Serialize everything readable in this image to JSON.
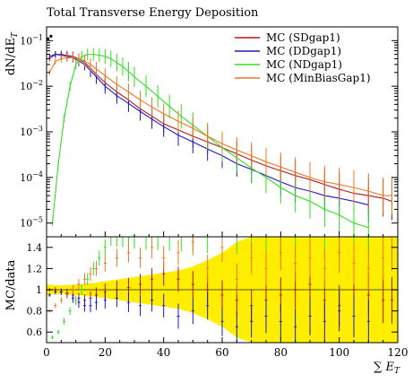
{
  "chart_data": {
    "type": "line",
    "title": "Total Transverse Energy Deposition",
    "xlabel": "∑ E_T",
    "ylabel_top": "dN/dE_T",
    "ylabel_bottom": "MC/data",
    "xlim": [
      0,
      120
    ],
    "ylim_top": [
      5e-06,
      0.2
    ],
    "yscale_top": "log",
    "ylim_bottom": [
      0.5,
      1.5
    ],
    "legend_position": "top-right",
    "x_ticks": [
      "0",
      "20",
      "40",
      "60",
      "80",
      "100",
      "120"
    ],
    "y_ticks_top": [
      {
        "label": "10",
        "exp": "−1",
        "value": 0.1
      },
      {
        "label": "10",
        "exp": "−2",
        "value": 0.01
      },
      {
        "label": "10",
        "exp": "−3",
        "value": 0.001
      },
      {
        "label": "10",
        "exp": "−4",
        "value": 0.0001
      },
      {
        "label": "10",
        "exp": "−5",
        "value": 1e-05
      }
    ],
    "y_ticks_bottom": [
      "0.6",
      "0.8",
      "1",
      "1.2",
      "1.4"
    ],
    "data_marker": {
      "x": [
        0.5,
        1.5
      ],
      "y": [
        0.11,
        0.125
      ]
    },
    "series": [
      {
        "name": "MC (SDgap1)",
        "color": "#b3171e",
        "x": [
          1,
          3,
          5,
          7,
          9,
          11,
          13,
          15,
          17,
          20,
          24,
          28,
          32,
          36,
          40,
          45,
          50,
          55,
          60,
          65,
          70,
          75,
          80,
          85,
          90,
          95,
          100,
          105,
          110,
          115,
          118
        ],
        "y": [
          0.04,
          0.05,
          0.05,
          0.048,
          0.045,
          0.04,
          0.033,
          0.025,
          0.018,
          0.012,
          0.0075,
          0.005,
          0.0032,
          0.0022,
          0.0015,
          0.0011,
          0.0008,
          0.0006,
          0.00045,
          0.00033,
          0.00024,
          0.00018,
          0.00014,
          0.00011,
          9e-05,
          7e-05,
          5.5e-05,
          4.5e-05,
          4e-05,
          3.5e-05,
          3e-05
        ],
        "ratio": [
          1.0,
          1.0,
          0.98,
          0.97,
          0.95,
          0.92,
          0.9,
          0.92,
          0.95,
          0.98,
          1.0,
          1.02,
          1.05,
          1.1,
          1.15,
          1.1,
          1.05,
          1.0,
          0.95,
          0.9,
          0.85,
          0.9,
          0.95,
          1.0,
          1.05,
          0.9,
          0.85,
          1.0,
          0.95,
          0.9,
          0.9
        ]
      },
      {
        "name": "MC (DDgap1)",
        "color": "#1a1acc",
        "x": [
          1,
          3,
          5,
          7,
          9,
          11,
          13,
          15,
          17,
          20,
          24,
          28,
          32,
          36,
          40,
          45,
          50,
          55,
          60,
          65,
          70,
          75,
          80,
          85,
          90,
          95,
          100,
          105,
          110
        ],
        "y": [
          0.045,
          0.05,
          0.048,
          0.045,
          0.042,
          0.036,
          0.03,
          0.022,
          0.016,
          0.01,
          0.0062,
          0.0042,
          0.0028,
          0.0019,
          0.0013,
          0.00085,
          0.0006,
          0.00042,
          0.0003,
          0.0002,
          0.00015,
          0.00011,
          8e-05,
          6e-05,
          5e-05,
          4e-05,
          3.5e-05,
          3e-05,
          2.5e-05
        ],
        "ratio": [
          0.95,
          0.98,
          0.98,
          0.96,
          0.92,
          0.88,
          0.85,
          0.85,
          0.88,
          0.9,
          0.92,
          0.88,
          0.85,
          0.9,
          0.85,
          0.75,
          0.8,
          0.85,
          0.7,
          0.65,
          0.7,
          0.75,
          0.7,
          0.65,
          0.75,
          0.7,
          0.8,
          0.75,
          0.7
        ]
      },
      {
        "name": "MC (NDgap1)",
        "color": "#33dd22",
        "x": [
          2,
          4,
          6,
          8,
          10,
          12,
          14,
          16,
          18,
          20,
          22,
          24,
          26,
          28,
          30,
          34,
          38,
          42,
          46,
          50,
          55,
          60,
          65,
          70,
          75,
          80,
          85,
          90,
          95,
          100,
          105,
          110
        ],
        "y": [
          1e-05,
          0.0002,
          0.002,
          0.01,
          0.03,
          0.045,
          0.05,
          0.05,
          0.048,
          0.045,
          0.04,
          0.033,
          0.027,
          0.021,
          0.016,
          0.01,
          0.006,
          0.0036,
          0.0022,
          0.0014,
          0.0008,
          0.00045,
          0.00027,
          0.00016,
          0.0001,
          6e-05,
          4e-05,
          3e-05,
          2e-05,
          1.5e-05,
          1e-05,
          8e-06
        ],
        "ratio": [
          0.55,
          0.6,
          0.7,
          0.8,
          0.9,
          1.0,
          1.1,
          1.2,
          1.3,
          1.4,
          1.5,
          1.5,
          1.5,
          1.5,
          1.5,
          1.5,
          1.5,
          1.5,
          1.5,
          1.5,
          1.5,
          1.5,
          1.5,
          1.5,
          1.5,
          1.5,
          1.5,
          1.5,
          1.5,
          1.5,
          1.5,
          1.5
        ]
      },
      {
        "name": "MC (MinBiasGap1)",
        "color": "#ee7722",
        "x": [
          1,
          3,
          5,
          7,
          9,
          11,
          13,
          15,
          17,
          20,
          24,
          28,
          32,
          36,
          40,
          45,
          50,
          55,
          60,
          65,
          70,
          75,
          80,
          85,
          90,
          95,
          100,
          105,
          110,
          115,
          118
        ],
        "y": [
          0.02,
          0.035,
          0.04,
          0.042,
          0.042,
          0.04,
          0.036,
          0.03,
          0.024,
          0.017,
          0.011,
          0.0075,
          0.005,
          0.0035,
          0.0025,
          0.0017,
          0.0012,
          0.0008,
          0.00055,
          0.0004,
          0.0003,
          0.00022,
          0.00017,
          0.00013,
          0.0001,
          8e-05,
          7e-05,
          6e-05,
          5e-05,
          4e-05,
          4e-05
        ],
        "ratio": [
          0.8,
          0.85,
          0.9,
          0.95,
          1.0,
          1.05,
          1.1,
          1.15,
          1.2,
          1.25,
          1.3,
          1.35,
          1.3,
          1.4,
          1.3,
          1.35,
          1.45,
          1.2,
          1.4,
          1.1,
          1.3,
          1.2,
          1.35,
          1.25,
          1.3,
          1.2,
          1.35,
          1.25,
          1.2,
          1.3,
          1.4
        ]
      }
    ],
    "data_uncertainty_band": {
      "color": "#ffee00",
      "x": [
        0,
        5,
        10,
        15,
        20,
        25,
        30,
        35,
        40,
        45,
        50,
        55,
        60,
        65,
        70,
        80,
        90,
        100,
        110,
        120
      ],
      "halfwidth": [
        0.05,
        0.04,
        0.05,
        0.06,
        0.08,
        0.1,
        0.12,
        0.14,
        0.16,
        0.18,
        0.22,
        0.28,
        0.35,
        0.45,
        0.5,
        0.5,
        0.5,
        0.5,
        0.5,
        0.5
      ]
    }
  }
}
